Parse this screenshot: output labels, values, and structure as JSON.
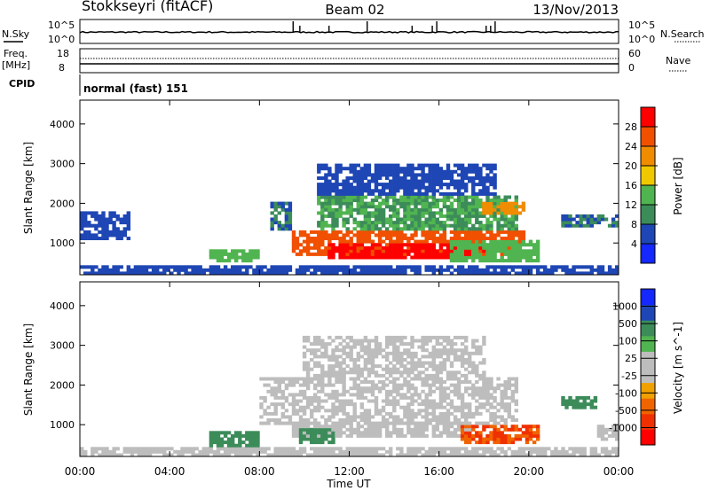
{
  "header": {
    "station": "Stokkseyri (fitACF)",
    "beam": "Beam 02",
    "date": "13/Nov/2013"
  },
  "noise_panel": {
    "left_label": "N.Sky",
    "left_ticks": [
      "10^5",
      "10^0"
    ],
    "right_label": "N.Search",
    "right_ticks": [
      "10^5",
      "10^0"
    ]
  },
  "freq_panel": {
    "left_label_1": "Freq.",
    "left_label_2": "[MHz]",
    "left_ticks": [
      "18",
      "8"
    ],
    "right_label": "Nave",
    "right_ticks": [
      "60",
      "0"
    ]
  },
  "cpid_panel": {
    "label": "CPID",
    "mode": "normal (fast) 151"
  },
  "colors": {
    "power_scale": [
      "#1428ff",
      "#1e46b4",
      "#3c8c5a",
      "#50b450",
      "#f0c800",
      "#f08c00",
      "#f05000",
      "#ff0000"
    ],
    "velocity_scale": [
      "#1428ff",
      "#1e46b4",
      "#3c8c5a",
      "#50b450",
      "#bdbdbd",
      "#bdbdbd",
      "#f0a000",
      "#f06400",
      "#f03000",
      "#ff0000"
    ],
    "ground_scatter": "#bdbdbd"
  },
  "chart_data": [
    {
      "type": "heatmap",
      "name": "power",
      "ylabel": "Slant Range [km]",
      "yticks": [
        "1000",
        "2000",
        "3000",
        "4000"
      ],
      "ylim": [
        200,
        4600
      ],
      "colorbar_label": "Power [dB]",
      "colorbar_ticks": [
        "4",
        "8",
        "12",
        "16",
        "20",
        "24",
        "28"
      ],
      "colorbar_range": [
        0,
        32
      ],
      "regions": [
        {
          "t0": 0.0,
          "t1": 2.2,
          "r0": 1100,
          "r1": 1800,
          "v": 7
        },
        {
          "t0": 5.8,
          "t1": 8.0,
          "r0": 500,
          "r1": 800,
          "v": 13
        },
        {
          "t0": 8.5,
          "t1": 9.5,
          "r0": 1300,
          "r1": 2000,
          "v": 8
        },
        {
          "t0": 9.5,
          "t1": 19.8,
          "r0": 700,
          "r1": 1300,
          "v": 26
        },
        {
          "t0": 11.0,
          "t1": 18.0,
          "r0": 600,
          "r1": 1000,
          "v": 29
        },
        {
          "t0": 10.5,
          "t1": 19.5,
          "r0": 1300,
          "r1": 2200,
          "v": 12
        },
        {
          "t0": 10.5,
          "t1": 18.5,
          "r0": 2200,
          "r1": 3000,
          "v": 5
        },
        {
          "t0": 18.0,
          "t1": 19.8,
          "r0": 1700,
          "r1": 2000,
          "v": 23
        },
        {
          "t0": 16.5,
          "t1": 20.5,
          "r0": 500,
          "r1": 1100,
          "v": 13
        },
        {
          "t0": 21.5,
          "t1": 24.0,
          "r0": 1400,
          "r1": 1700,
          "v": 8
        },
        {
          "t0": 0.0,
          "t1": 24.0,
          "r0": 200,
          "r1": 400,
          "v": 5
        }
      ]
    },
    {
      "type": "heatmap",
      "name": "velocity",
      "ylabel": "Slant Range [km]",
      "yticks": [
        "1000",
        "2000",
        "3000",
        "4000"
      ],
      "ylim": [
        200,
        4600
      ],
      "colorbar_label": "Velocity [m s^-1]",
      "colorbar_ticks": [
        "1000",
        "500",
        "100",
        "25",
        "-25",
        "-100",
        "-500",
        "-1000"
      ],
      "regions": [
        {
          "t0": 8.0,
          "t1": 19.5,
          "r0": 1000,
          "r1": 2200,
          "v": 0
        },
        {
          "t0": 9.5,
          "t1": 17.5,
          "r0": 700,
          "r1": 1100,
          "v": 0
        },
        {
          "t0": 10.0,
          "t1": 18.0,
          "r0": 2200,
          "r1": 3200,
          "v": 0
        },
        {
          "t0": 5.8,
          "t1": 8.0,
          "r0": 400,
          "r1": 800,
          "v": 150
        },
        {
          "t0": 9.8,
          "t1": 11.3,
          "r0": 500,
          "r1": 900,
          "v": 200
        },
        {
          "t0": 17.0,
          "t1": 20.5,
          "r0": 500,
          "r1": 1000,
          "v": -300
        },
        {
          "t0": 21.5,
          "t1": 23.0,
          "r0": 1400,
          "r1": 1700,
          "v": 150
        },
        {
          "t0": 23.0,
          "t1": 24.0,
          "r0": 600,
          "r1": 1000,
          "v": 0
        },
        {
          "t0": 0.0,
          "t1": 24.0,
          "r0": 200,
          "r1": 400,
          "v": 20
        }
      ]
    }
  ],
  "time_axis": {
    "label": "Time UT",
    "ticks": [
      "00:00",
      "04:00",
      "08:00",
      "12:00",
      "16:00",
      "20:00",
      "00:00"
    ],
    "range_hours": [
      0,
      24
    ]
  }
}
